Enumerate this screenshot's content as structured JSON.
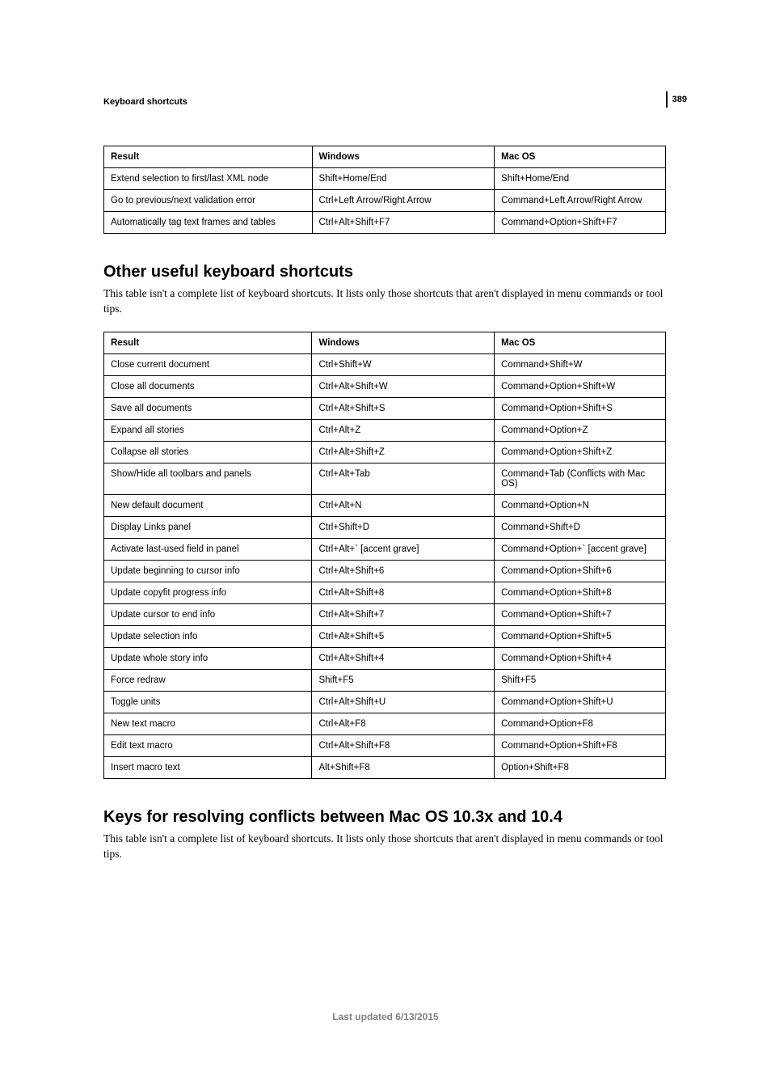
{
  "page_number": "389",
  "header_title": "Keyboard shortcuts",
  "table1": {
    "columns": [
      "Result",
      "Windows",
      "Mac OS"
    ],
    "rows": [
      [
        "Extend selection to first/last XML node",
        "Shift+Home/End",
        "Shift+Home/End"
      ],
      [
        "Go to previous/next validation error",
        "Ctrl+Left Arrow/Right Arrow",
        "Command+Left Arrow/Right Arrow"
      ],
      [
        "Automatically tag text frames and tables",
        "Ctrl+Alt+Shift+F7",
        "Command+Option+Shift+F7"
      ]
    ]
  },
  "section2": {
    "heading": "Other useful keyboard shortcuts",
    "intro": "This table isn't a complete list of keyboard shortcuts. It lists only those shortcuts that aren't displayed in menu commands or tool tips."
  },
  "table2": {
    "columns": [
      "Result",
      "Windows",
      "Mac OS"
    ],
    "rows": [
      [
        "Close current document",
        "Ctrl+Shift+W",
        "Command+Shift+W"
      ],
      [
        "Close all documents",
        "Ctrl+Alt+Shift+W",
        "Command+Option+Shift+W"
      ],
      [
        "Save all documents",
        "Ctrl+Alt+Shift+S",
        "Command+Option+Shift+S"
      ],
      [
        "Expand all stories",
        "Ctrl+Alt+Z",
        "Command+Option+Z"
      ],
      [
        "Collapse all stories",
        "Ctrl+Alt+Shift+Z",
        "Command+Option+Shift+Z"
      ],
      [
        "Show/Hide all toolbars and panels",
        "Ctrl+Alt+Tab",
        "Command+Tab (Conflicts with Mac OS)"
      ],
      [
        "New default document",
        "Ctrl+Alt+N",
        "Command+Option+N"
      ],
      [
        "Display Links panel",
        "Ctrl+Shift+D",
        "Command+Shift+D"
      ],
      [
        "Activate last-used field in panel",
        "Ctrl+Alt+` [accent grave]",
        "Command+Option+` [accent grave]"
      ],
      [
        "Update beginning to cursor info",
        "Ctrl+Alt+Shift+6",
        "Command+Option+Shift+6"
      ],
      [
        "Update copyfit progress info",
        "Ctrl+Alt+Shift+8",
        "Command+Option+Shift+8"
      ],
      [
        "Update cursor to end info",
        "Ctrl+Alt+Shift+7",
        "Command+Option+Shift+7"
      ],
      [
        "Update selection info",
        "Ctrl+Alt+Shift+5",
        "Command+Option+Shift+5"
      ],
      [
        "Update whole story info",
        "Ctrl+Alt+Shift+4",
        "Command+Option+Shift+4"
      ],
      [
        "Force redraw",
        "Shift+F5",
        "Shift+F5"
      ],
      [
        "Toggle units",
        "Ctrl+Alt+Shift+U",
        "Command+Option+Shift+U"
      ],
      [
        "New text macro",
        "Ctrl+Alt+F8",
        "Command+Option+F8"
      ],
      [
        "Edit text macro",
        "Ctrl+Alt+Shift+F8",
        "Command+Option+Shift+F8"
      ],
      [
        "Insert macro text",
        "Alt+Shift+F8",
        "Option+Shift+F8"
      ]
    ]
  },
  "section3": {
    "heading": "Keys for resolving conflicts between Mac OS 10.3x and 10.4",
    "intro": "This table isn't a complete list of keyboard shortcuts. It lists only those shortcuts that aren't displayed in menu commands or tool tips."
  },
  "footer": "Last updated 6/13/2015"
}
